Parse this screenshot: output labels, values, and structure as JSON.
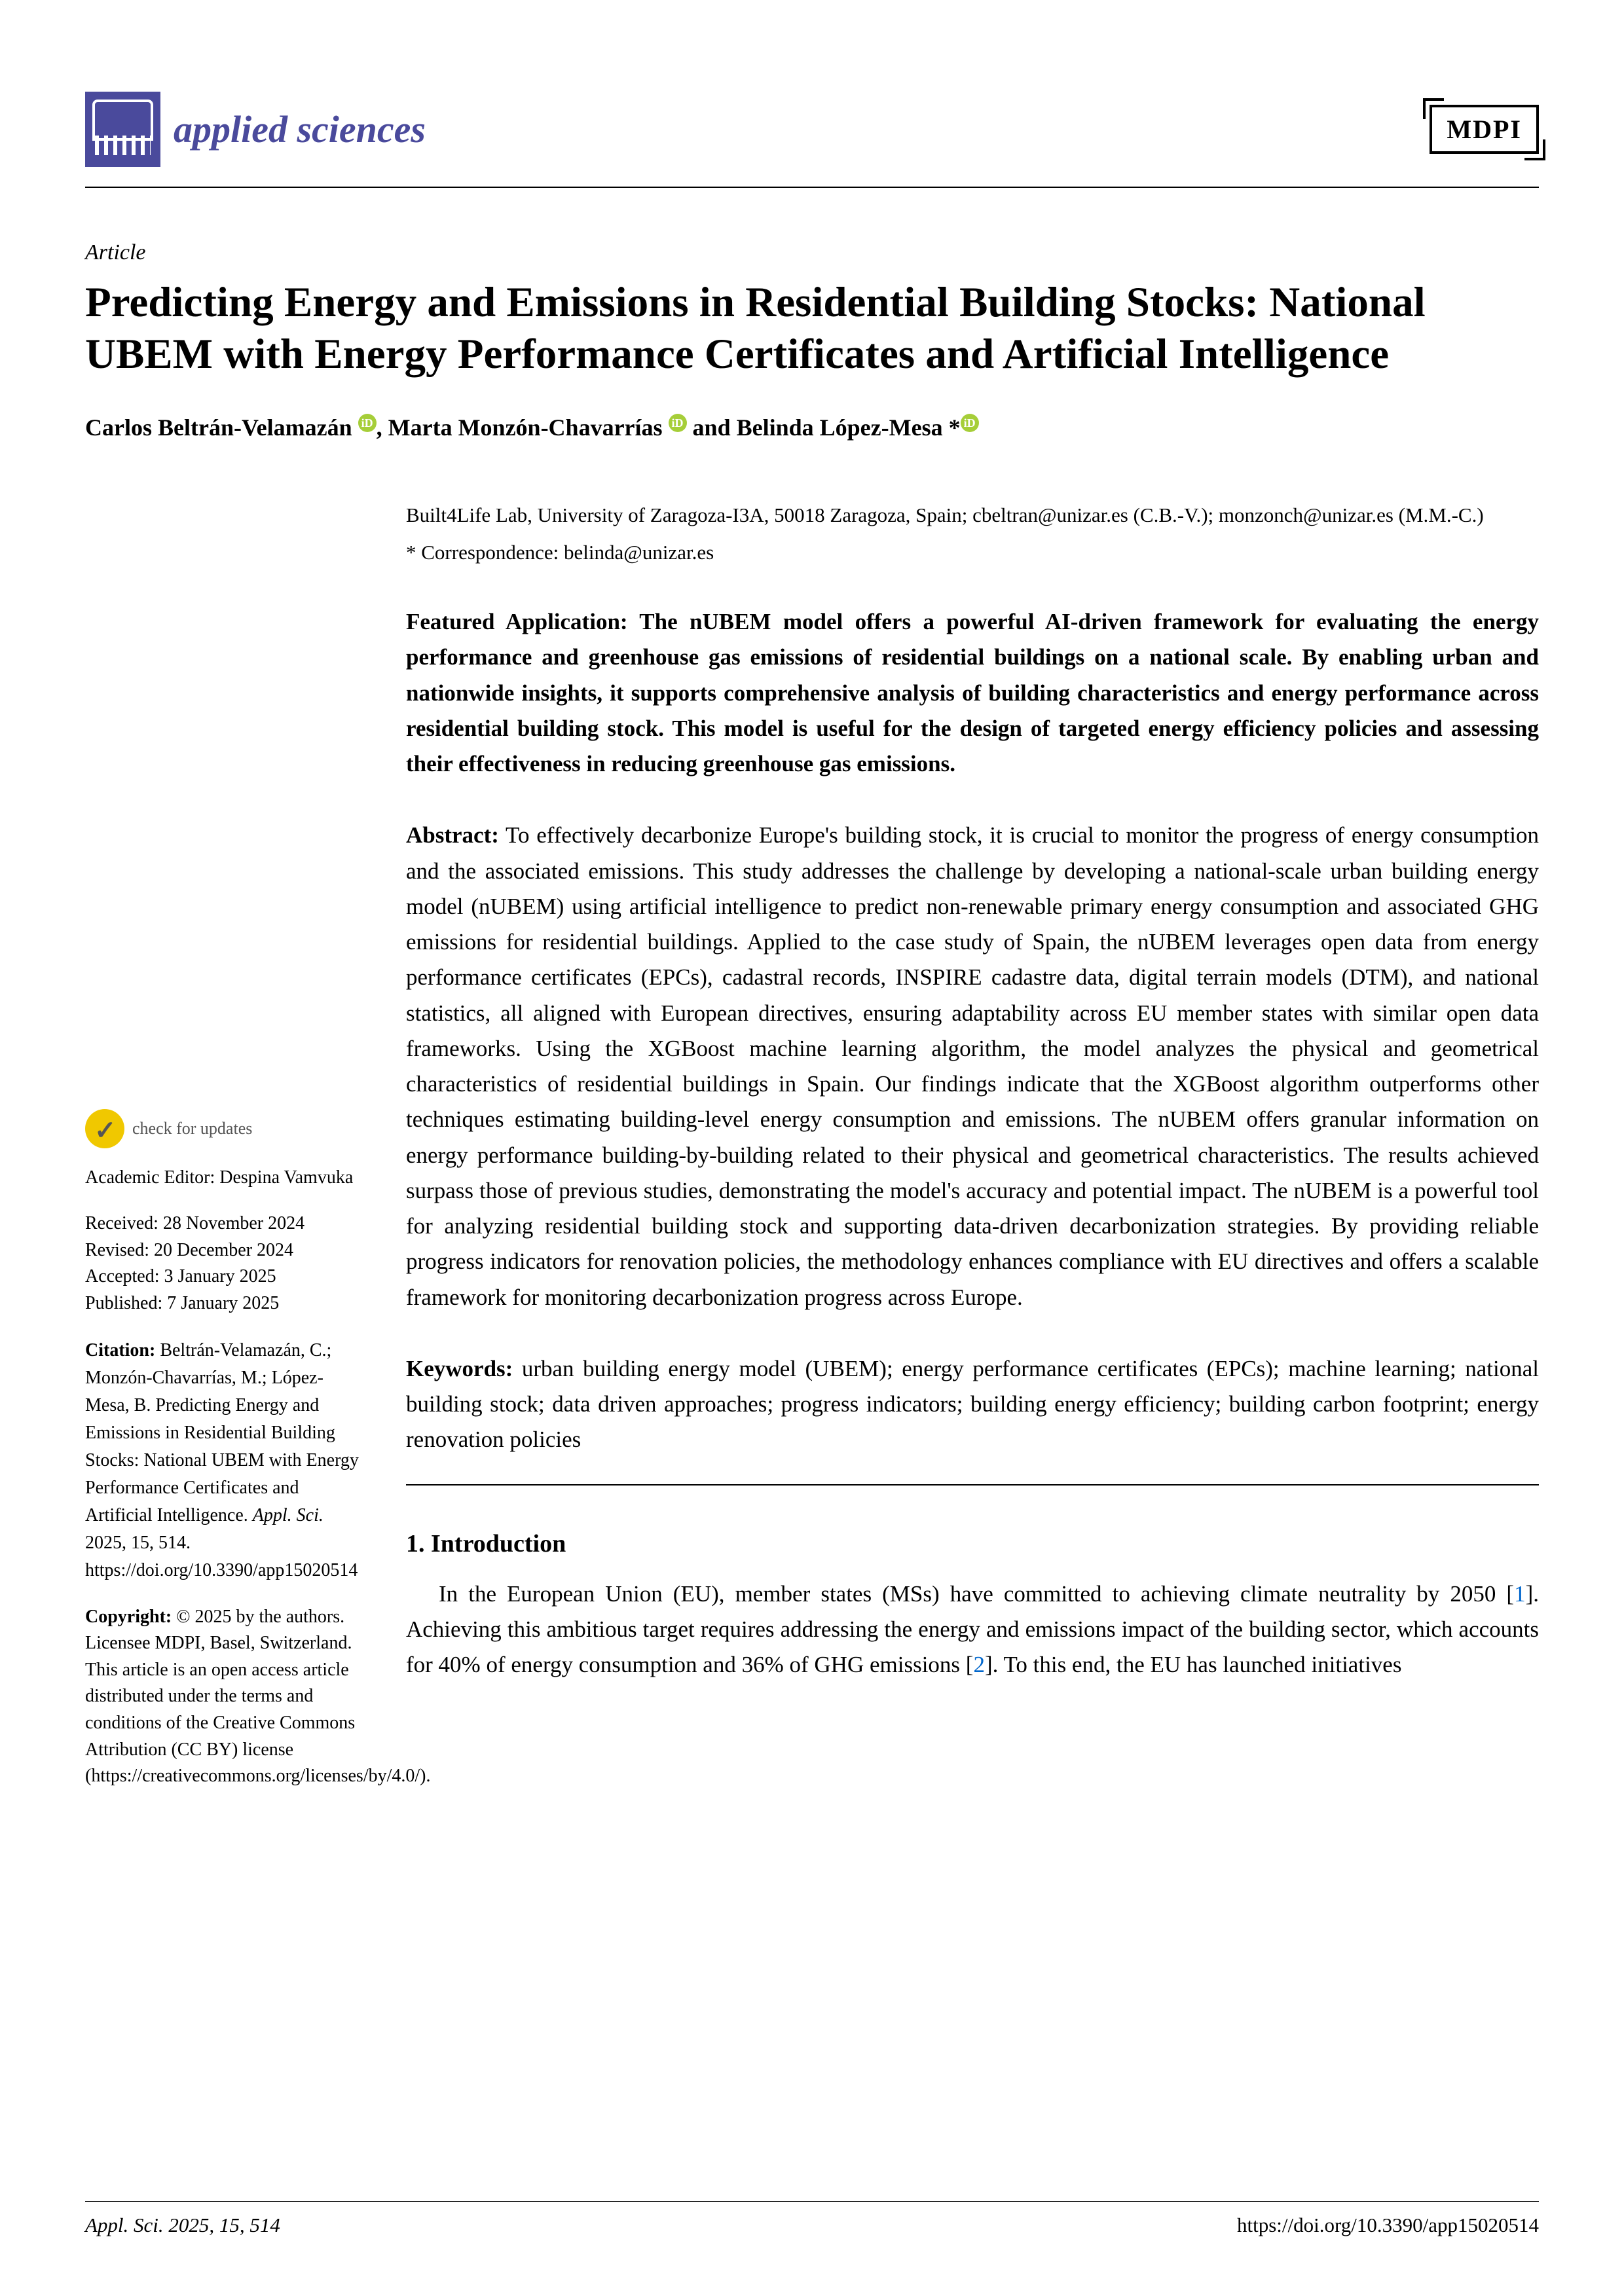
{
  "journal": {
    "name": "applied sciences",
    "publisher_logo": "MDPI"
  },
  "article": {
    "type": "Article",
    "title": "Predicting Energy and Emissions in Residential Building Stocks: National UBEM with Energy Performance Certificates and Artificial Intelligence",
    "authors_html": "Carlos Beltrán-Velamazán <span class='orcid'>iD</span>, Marta Monzón-Chavarrías <span class='orcid'>iD</span> and Belinda López-Mesa *<span class='orcid'>iD</span>",
    "affiliation": "Built4Life Lab, University of Zaragoza-I3A, 50018 Zaragoza, Spain; cbeltran@unizar.es (C.B.-V.); monzonch@unizar.es (M.M.-C.)",
    "correspondence": "*  Correspondence: belinda@unizar.es",
    "featured": "Featured Application: The nUBEM model offers a powerful AI-driven framework for evaluating the energy performance and greenhouse gas emissions of residential buildings on a national scale. By enabling urban and nationwide insights, it supports comprehensive analysis of building characteristics and energy performance across residential building stock. This model is useful for the design of targeted energy efficiency policies and assessing their effectiveness in reducing greenhouse gas emissions.",
    "abstract_label": "Abstract:",
    "abstract": " To effectively decarbonize Europe's building stock, it is crucial to monitor the progress of energy consumption and the associated emissions. This study addresses the challenge by developing a national-scale urban building energy model (nUBEM) using artificial intelligence to predict non-renewable primary energy consumption and associated GHG emissions for residential buildings. Applied to the case study of Spain, the nUBEM leverages open data from energy performance certificates (EPCs), cadastral records, INSPIRE cadastre data, digital terrain models (DTM), and national statistics, all aligned with European directives, ensuring adaptability across EU member states with similar open data frameworks. Using the XGBoost machine learning algorithm, the model analyzes the physical and geometrical characteristics of residential buildings in Spain. Our findings indicate that the XGBoost algorithm outperforms other techniques estimating building-level energy consumption and emissions. The nUBEM offers granular information on energy performance building-by-building related to their physical and geometrical characteristics. The results achieved surpass those of previous studies, demonstrating the model's accuracy and potential impact. The nUBEM is a powerful tool for analyzing residential building stock and supporting data-driven decarbonization strategies. By providing reliable progress indicators for renovation policies, the methodology enhances compliance with EU directives and offers a scalable framework for monitoring decarbonization progress across Europe.",
    "keywords_label": "Keywords:",
    "keywords": " urban building energy model (UBEM); energy performance certificates (EPCs); machine learning; national building stock; data driven approaches; progress indicators; building energy efficiency; building carbon footprint; energy renovation policies"
  },
  "sidebar": {
    "check_updates": "check for updates",
    "editor_label": "Academic Editor: ",
    "editor": "Despina Vamvuka",
    "received": "Received: 28 November 2024",
    "revised": "Revised: 20 December 2024",
    "accepted": "Accepted: 3 January 2025",
    "published": "Published: 7 January 2025",
    "citation_label": "Citation:",
    "citation_text": " Beltrán-Velamazán, C.; Monzón-Chavarrías, M.; López-Mesa, B. Predicting Energy and Emissions in Residential Building Stocks: National UBEM with Energy Performance Certificates and Artificial Intelligence. ",
    "citation_journal": "Appl. Sci.",
    "citation_ref": " 2025, 15, 514.  https://doi.org/10.3390/app15020514",
    "copyright_label": "Copyright:",
    "copyright": " © 2025 by the authors. Licensee MDPI, Basel, Switzerland. This article is an open access article distributed under the terms and conditions of the Creative Commons Attribution (CC BY) license (https://creativecommons.org/licenses/by/4.0/)."
  },
  "section1": {
    "heading": "1. Introduction",
    "para1_a": "In the European Union (EU), member states (MSs) have committed to achieving climate neutrality by 2050 [",
    "cite1": "1",
    "para1_b": "]. Achieving this ambitious target requires addressing the energy and emissions impact of the building sector, which accounts for 40% of energy consumption and 36% of GHG emissions [",
    "cite2": "2",
    "para1_c": "]. To this end, the EU has launched initiatives"
  },
  "footer": {
    "left": "Appl. Sci. 2025, 15, 514",
    "right": "https://doi.org/10.3390/app15020514"
  }
}
